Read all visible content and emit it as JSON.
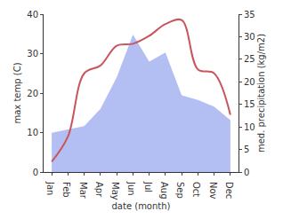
{
  "chart_data": {
    "type": "line",
    "x_label": "date (month)",
    "y_label": "max temp (C)",
    "y2_label": "med. precipitation (kg/m2)",
    "categories": [
      "Jan",
      "Feb",
      "Mar",
      "Apr",
      "May",
      "Jun",
      "Jul",
      "Aug",
      "Sep",
      "Oct",
      "Nov",
      "Dec"
    ],
    "series": [
      {
        "name": "med. precipitation",
        "type": "area",
        "axis": "y2",
        "color": "#b3bff2",
        "values": [
          8.7,
          9.5,
          10.2,
          14,
          21,
          30.5,
          24.5,
          26.5,
          17,
          16,
          14.5,
          11.5
        ]
      },
      {
        "name": "max temp",
        "type": "line",
        "color": "#c9555d",
        "line_style": "smooth",
        "values": [
          2.6,
          9,
          25,
          27,
          32,
          32.5,
          34.5,
          37.5,
          38.5,
          26,
          25,
          14.5
        ]
      }
    ],
    "ylim": [
      0,
      40
    ],
    "yticks": [
      0,
      10,
      20,
      30,
      40
    ],
    "y2lim": [
      0,
      35
    ],
    "y2ticks": [
      0,
      5,
      10,
      15,
      20,
      25,
      30,
      35
    ],
    "grid": false
  }
}
